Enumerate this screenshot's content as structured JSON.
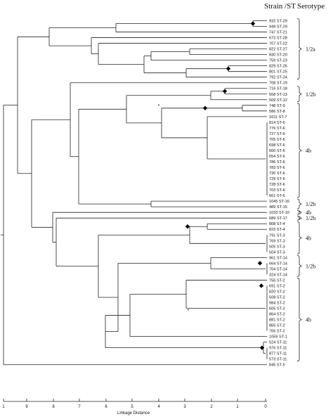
{
  "header": {
    "strain_st": "Strain /ST",
    "serotype": "Serotype"
  },
  "axis": {
    "title": "Linkage Distance",
    "ticks": [
      "1",
      "9",
      "8",
      "7",
      "6",
      "5",
      "4",
      "3",
      "2",
      "1",
      "0"
    ]
  },
  "leaves": [
    "932 ST-29",
    "949 ST-29",
    "747 ST-21",
    "673 ST-28",
    "707 ST-22",
    "822 ST-27",
    "830 ST-20",
    "759 ST-23",
    "829 ST-26",
    "801 ST-25",
    "792 ST-24",
    "708 ST-19",
    "716 ST-18",
    "558 ST-13",
    "509 ST-12",
    "748 ST-9",
    "586 ST-8",
    "1011 ST-7",
    "814 ST-6",
    "776 ST-6",
    "727 ST-6",
    "705 ST-6",
    "698 ST-6",
    "660 ST-6",
    "654 ST-6",
    "786 ST-6",
    "783 ST-6",
    "730 ST-6",
    "729 ST-6",
    "728 ST-6",
    "703 ST-6",
    "661 ST-6",
    "1045 ST-16",
    "489 ST-15",
    "1033 ST-10",
    "689 ST-17",
    "808 ST-4",
    "823 ST-4",
    "791 ST-3",
    "769 ST-3",
    "505 ST-3",
    "504 ST-3",
    "961 ST-14",
    "664 ST-14",
    "704 ST-14",
    "324 ST-14",
    "756 ST-2",
    "691 ST-2",
    "820 ST-2",
    "508 ST-2",
    "984 ST-2",
    "605 ST-2",
    "864 ST-2",
    "881 ST-2",
    "865 ST-2",
    "706 ST-2",
    "1059 ST-1",
    "524 ST-11",
    "976 ST-11",
    "877 ST-11",
    "573 ST-11",
    "845 ST-5"
  ],
  "serotypes": [
    "1/2a",
    "1/2b",
    "4b",
    "1/2b",
    "4b",
    "1/2b",
    "4b",
    "1/2b",
    "4b"
  ]
}
